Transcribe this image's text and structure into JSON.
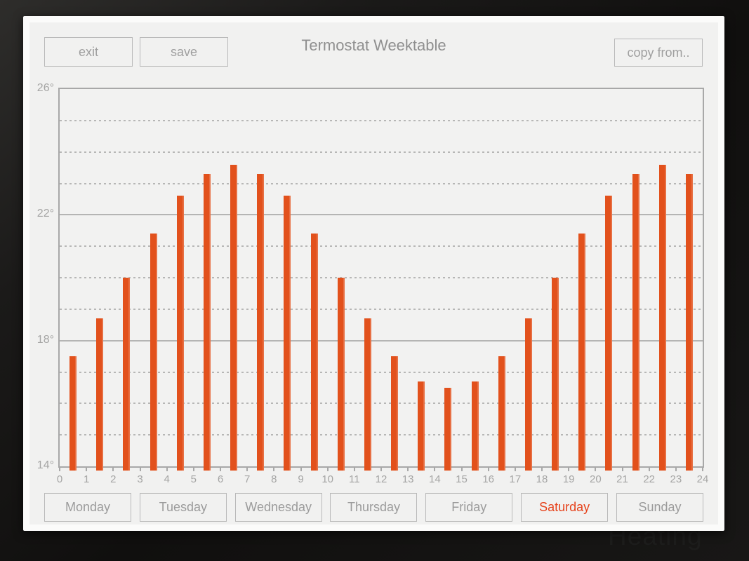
{
  "window": {
    "title": "Termostat Weektable",
    "buttons": {
      "exit": "exit",
      "save": "save",
      "copy_from": "copy from.."
    }
  },
  "watermark": "Heating",
  "days": [
    {
      "label": "Monday",
      "selected": false
    },
    {
      "label": "Tuesday",
      "selected": false
    },
    {
      "label": "Wednesday",
      "selected": false
    },
    {
      "label": "Thursday",
      "selected": false
    },
    {
      "label": "Friday",
      "selected": false
    },
    {
      "label": "Saturday",
      "selected": true
    },
    {
      "label": "Sunday",
      "selected": false
    }
  ],
  "colors": {
    "bar": "#e2511c",
    "selected_day": "#e6431c",
    "grid": "#b5b5b4",
    "plot_border": "#a8a8a8",
    "text_gray": "#9b9b9b"
  },
  "chart_data": {
    "type": "bar",
    "title": "",
    "xlabel": "",
    "ylabel": "",
    "hours": [
      0,
      1,
      2,
      3,
      4,
      5,
      6,
      7,
      8,
      9,
      10,
      11,
      12,
      13,
      14,
      15,
      16,
      17,
      18,
      19,
      20,
      21,
      22,
      23
    ],
    "values": [
      17.5,
      18.7,
      20.0,
      21.4,
      22.6,
      23.3,
      23.6,
      23.3,
      22.6,
      21.4,
      20.0,
      18.7,
      17.5,
      16.7,
      16.5,
      16.7,
      17.5,
      18.7,
      20.0,
      21.4,
      22.6,
      23.3,
      23.6,
      23.3
    ],
    "unit": "°C",
    "xlim": [
      0,
      24
    ],
    "ylim": [
      14,
      26
    ],
    "x_tick_labels": [
      "0",
      "1",
      "2",
      "3",
      "4",
      "5",
      "6",
      "7",
      "8",
      "9",
      "10",
      "11",
      "12",
      "13",
      "14",
      "15",
      "16",
      "17",
      "18",
      "19",
      "20",
      "21",
      "22",
      "23",
      "24"
    ],
    "y_ticks": [
      14,
      18,
      22,
      26
    ],
    "y_tick_labels": [
      "14°",
      "18°",
      "22°",
      "26°"
    ],
    "grid": {
      "solid_step": 4,
      "dashed_step": 1,
      "legend": "none"
    }
  }
}
